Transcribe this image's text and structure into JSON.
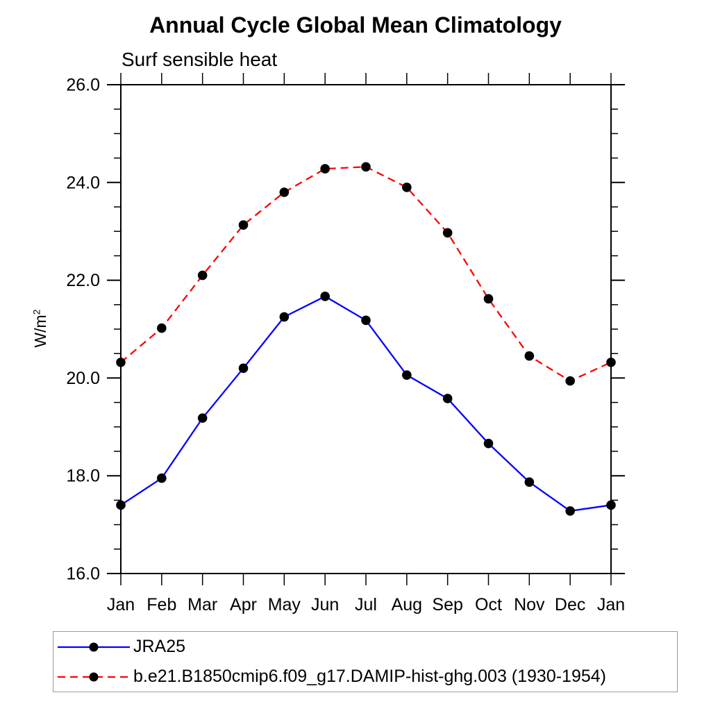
{
  "chart_data": {
    "type": "line",
    "title": "Annual Cycle Global Mean Climatology",
    "subtitle": "Surf sensible heat",
    "ylabel_base": "W/m",
    "ylabel_sup": "2",
    "categories": [
      "Jan",
      "Feb",
      "Mar",
      "Apr",
      "May",
      "Jun",
      "Jul",
      "Aug",
      "Sep",
      "Oct",
      "Nov",
      "Dec",
      "Jan"
    ],
    "ylim": [
      16.0,
      26.0
    ],
    "y_major_ticks": [
      "16.0",
      "18.0",
      "20.0",
      "22.0",
      "24.0",
      "26.0"
    ],
    "y_minor_step": 0.5,
    "grid": false,
    "legend_position": "bottom-left-box",
    "axis_color": "#000000",
    "marker": "filled-black-circle",
    "series": [
      {
        "name": "JRA25",
        "color": "#0000ff",
        "line_style": "solid",
        "values": [
          17.4,
          17.95,
          19.18,
          20.2,
          21.25,
          21.67,
          21.18,
          20.06,
          19.58,
          18.66,
          17.87,
          17.28,
          17.4
        ]
      },
      {
        "name": "b.e21.B1850cmip6.f09_g17.DAMIP-hist-ghg.003 (1930-1954)",
        "color": "#ff0000",
        "line_style": "dashed",
        "values": [
          20.32,
          21.02,
          22.1,
          23.13,
          23.8,
          24.28,
          24.32,
          23.9,
          22.97,
          21.62,
          20.45,
          19.94,
          20.32
        ]
      }
    ]
  }
}
